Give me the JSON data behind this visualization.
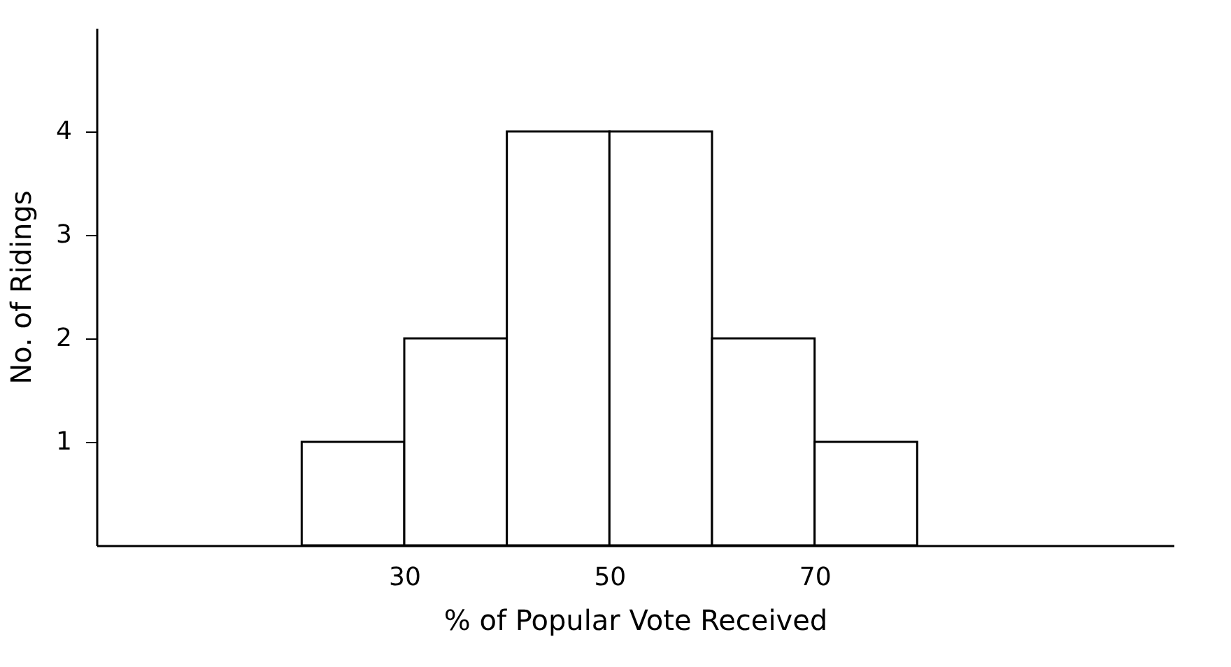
{
  "chart_data": {
    "type": "histogram",
    "xlabel": "% of Popular Vote Received",
    "ylabel": "No. of Ridings",
    "bins": [
      20,
      30,
      40,
      50,
      60,
      70,
      80
    ],
    "values": [
      1,
      2,
      4,
      4,
      2,
      1
    ],
    "color": "#ffffff",
    "xlim": [
      0,
      105
    ],
    "ylim": [
      0,
      5
    ],
    "xticks": [
      30,
      50,
      70
    ],
    "yticks": [
      1,
      2,
      3,
      4
    ],
    "grid": false
  }
}
